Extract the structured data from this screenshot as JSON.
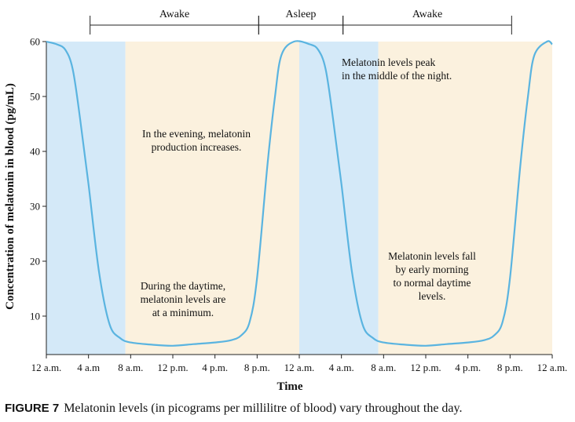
{
  "chart_data": {
    "type": "line",
    "title": "",
    "xlabel": "Time",
    "ylabel": "Concentration of melatonin in blood (pg/mL)",
    "ylim": [
      3,
      60
    ],
    "yticks": [
      10,
      20,
      30,
      40,
      50,
      60
    ],
    "grid": false,
    "x_tick_labels": [
      "12 a.m.",
      "4 a.m",
      "8 a.m.",
      "12 p.m.",
      "4 p.m.",
      "8 p.m.",
      "12 a.m.",
      "4 a.m.",
      "8 a.m.",
      "12 p.m.",
      "4 p.m.",
      "8 p.m.",
      "12 a.m."
    ],
    "x_hours": [
      0,
      4,
      8,
      12,
      16,
      20,
      24,
      28,
      32,
      36,
      40,
      44,
      48
    ],
    "series": [
      {
        "name": "",
        "x_hours": [
          0,
          1,
          1.8,
          2.5,
          3.2,
          4,
          5,
          6,
          7,
          8,
          10,
          12,
          14,
          16,
          17.5,
          18.5,
          19.3,
          20,
          21,
          21.7,
          22.3,
          23.5,
          25,
          25.8,
          26.5,
          27.2,
          28,
          29,
          30,
          31,
          32,
          34,
          36,
          38,
          40,
          41.5,
          42.5,
          43.3,
          44,
          45,
          45.7,
          46.3,
          47.5,
          48
        ],
        "values": [
          60,
          59.5,
          58.5,
          55,
          46,
          34,
          18,
          8.5,
          6,
          5.2,
          4.8,
          4.6,
          4.9,
          5.2,
          5.6,
          6.5,
          9,
          17,
          38,
          50,
          57.5,
          60,
          59.5,
          58.5,
          55,
          46,
          34,
          18,
          8.5,
          6,
          5.2,
          4.8,
          4.6,
          4.9,
          5.2,
          5.6,
          6.5,
          9,
          17,
          38,
          50,
          57.5,
          60,
          59.5
        ],
        "color": "#5ab4e0"
      }
    ],
    "shaded_regions": [
      {
        "from_hour": 0,
        "to_hour": 7.5,
        "color": "#d4e9f8"
      },
      {
        "from_hour": 7.5,
        "to_hour": 24,
        "color": "#fbf1de"
      },
      {
        "from_hour": 24,
        "to_hour": 31.5,
        "color": "#d4e9f8"
      },
      {
        "from_hour": 31.5,
        "to_hour": 48,
        "color": "#fbf1de"
      }
    ],
    "periods": [
      {
        "label": "Awake",
        "from_hour": 4,
        "to_hour": 20
      },
      {
        "label": "Asleep",
        "from_hour": 20,
        "to_hour": 28
      },
      {
        "label": "Awake",
        "from_hour": 28,
        "to_hour": 44
      }
    ],
    "annotations": [
      {
        "lines": [
          "In the evening, melatonin",
          "production increases."
        ]
      },
      {
        "lines": [
          "Melatonin levels peak",
          "in the middle of the night."
        ]
      },
      {
        "lines": [
          "During the daytime,",
          "melatonin levels are",
          "at a minimum."
        ]
      },
      {
        "lines": [
          "Melatonin levels fall",
          "by early morning",
          "to normal daytime",
          "levels."
        ]
      }
    ]
  },
  "caption": {
    "figure_number": "FIGURE 7",
    "text": "Melatonin levels (in picograms per millilitre of blood) vary throughout the day."
  }
}
